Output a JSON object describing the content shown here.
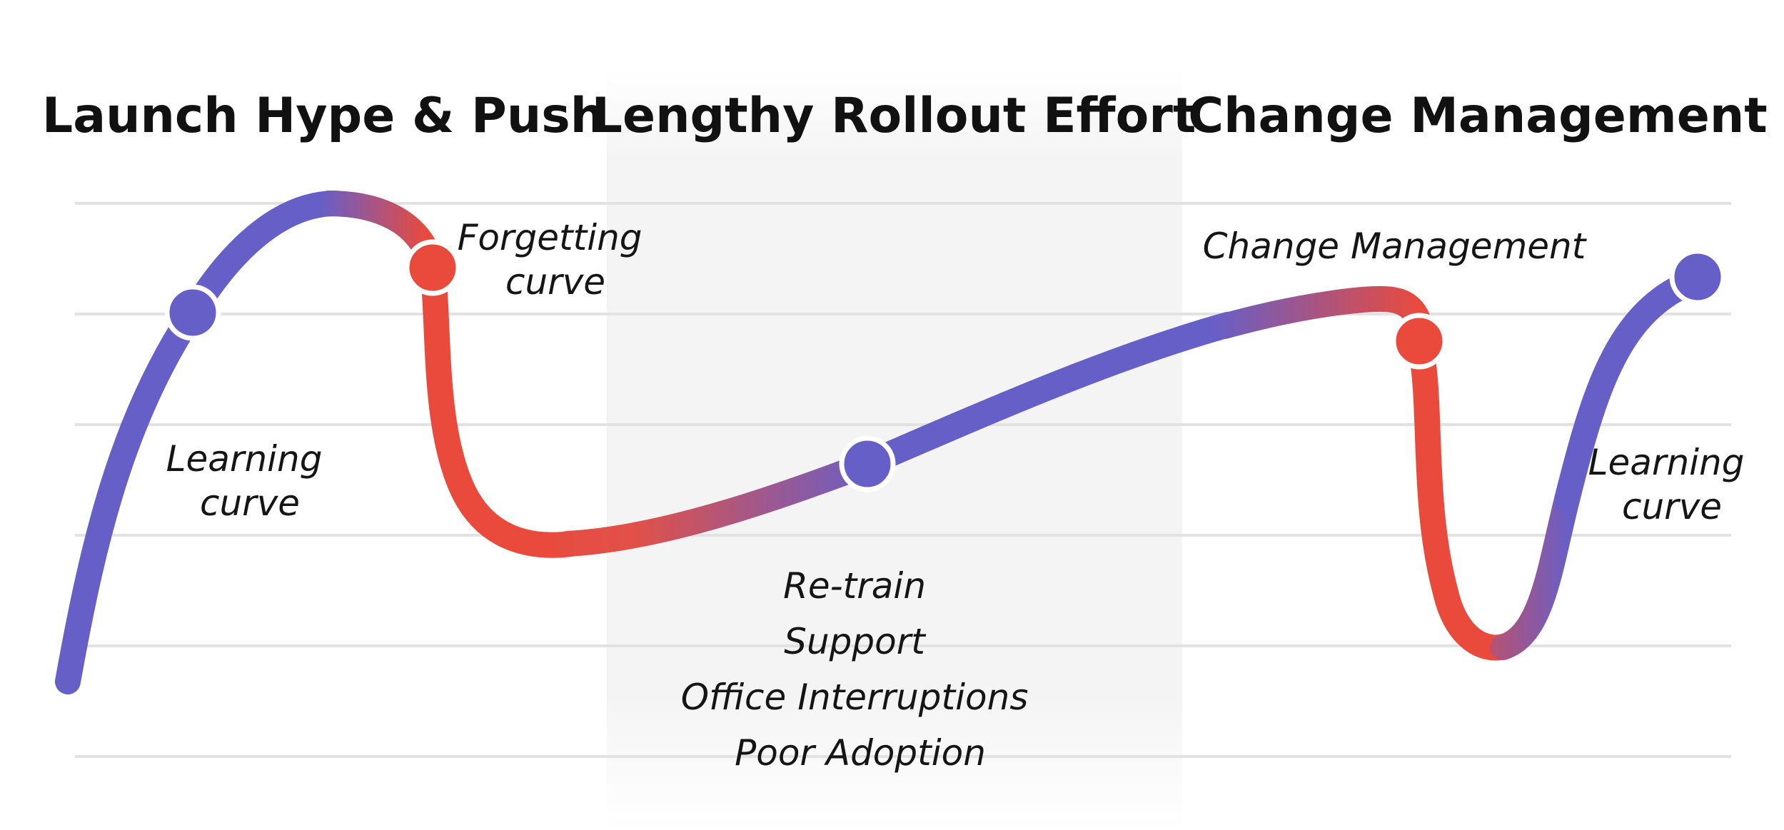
{
  "sections": [
    {
      "title": "Launch Hype & Push"
    },
    {
      "title": "Lengthy Rollout Effort"
    },
    {
      "title": "Change Management"
    }
  ],
  "annotations": {
    "learning_curve_left": [
      "Learning",
      "curve"
    ],
    "forgetting_curve": [
      "Forgetting",
      "curve"
    ],
    "rollout_issues": [
      "Re-train",
      "Support",
      "Office Interruptions",
      "Poor Adoption"
    ],
    "change_management": "Change Management",
    "learning_curve_right": [
      "Learning",
      "curve"
    ]
  },
  "colors": {
    "learning": "#675fc8",
    "forgetting": "#ea4a3c",
    "middle_band": "#f4f4f4",
    "gridline": "#e2e2e2",
    "text": "#111111"
  },
  "legend_nodes": [
    {
      "name": "learning-node-1",
      "kind": "learning"
    },
    {
      "name": "forgetting-node-1",
      "kind": "forgetting"
    },
    {
      "name": "learning-node-2",
      "kind": "learning"
    },
    {
      "name": "forgetting-node-2",
      "kind": "forgetting"
    },
    {
      "name": "learning-node-3",
      "kind": "learning"
    }
  ]
}
